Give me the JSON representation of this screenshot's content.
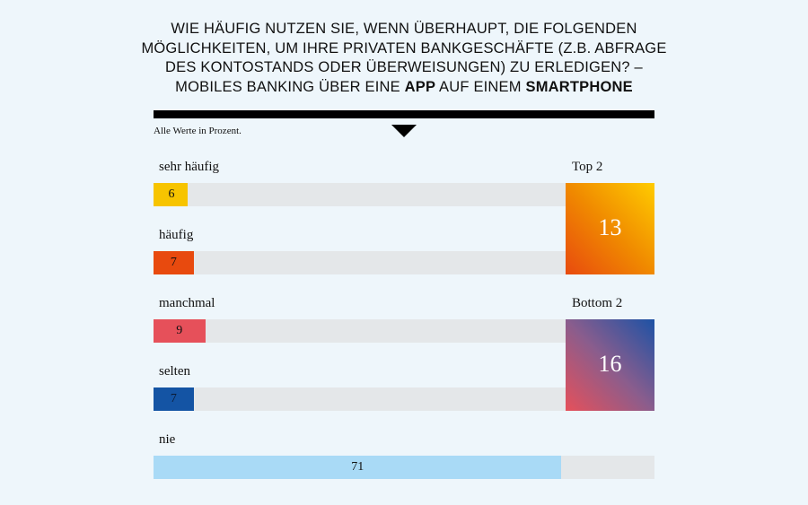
{
  "title_segments": [
    {
      "text": "WIE HÄUFIG NUTZEN SIE, WENN ÜBERHAUPT, DIE FOLGENDEN MÖGLICHKEITEN, UM IHRE PRIVATEN BANKGESCHÄFTE (Z.B. ABFRAGE DES KONTOSTANDS ODER ÜBERWEISUNGEN) ZU ERLEDIGEN? – MOBILES BANKING ÜBER EINE ",
      "bold": false
    },
    {
      "text": "APP",
      "bold": true
    },
    {
      "text": " AUF EINEM ",
      "bold": false
    },
    {
      "text": "SMARTPHONE",
      "bold": true
    }
  ],
  "note": "Alle Werte in Prozent.",
  "chart_data": {
    "type": "bar",
    "orientation": "horizontal",
    "unit": "%",
    "xlim": [
      0,
      100
    ],
    "categories": [
      "sehr häufig",
      "häufig",
      "manchmal",
      "selten",
      "nie"
    ],
    "values": [
      6,
      7,
      9,
      7,
      71
    ],
    "colors": [
      "#f7c400",
      "#e84a0e",
      "#e6505a",
      "#1454a4",
      "#a9daf6"
    ],
    "groups": [
      {
        "label": "Top 2",
        "value": "13",
        "members": [
          0,
          1
        ],
        "gradient": [
          "#ffcc00",
          "#f08a00",
          "#e84a0e"
        ]
      },
      {
        "label": "Bottom 2",
        "value": "16",
        "members": [
          2,
          3
        ],
        "gradient": [
          "#1d52a5",
          "#8a5d8d",
          "#e6505a"
        ]
      }
    ]
  }
}
